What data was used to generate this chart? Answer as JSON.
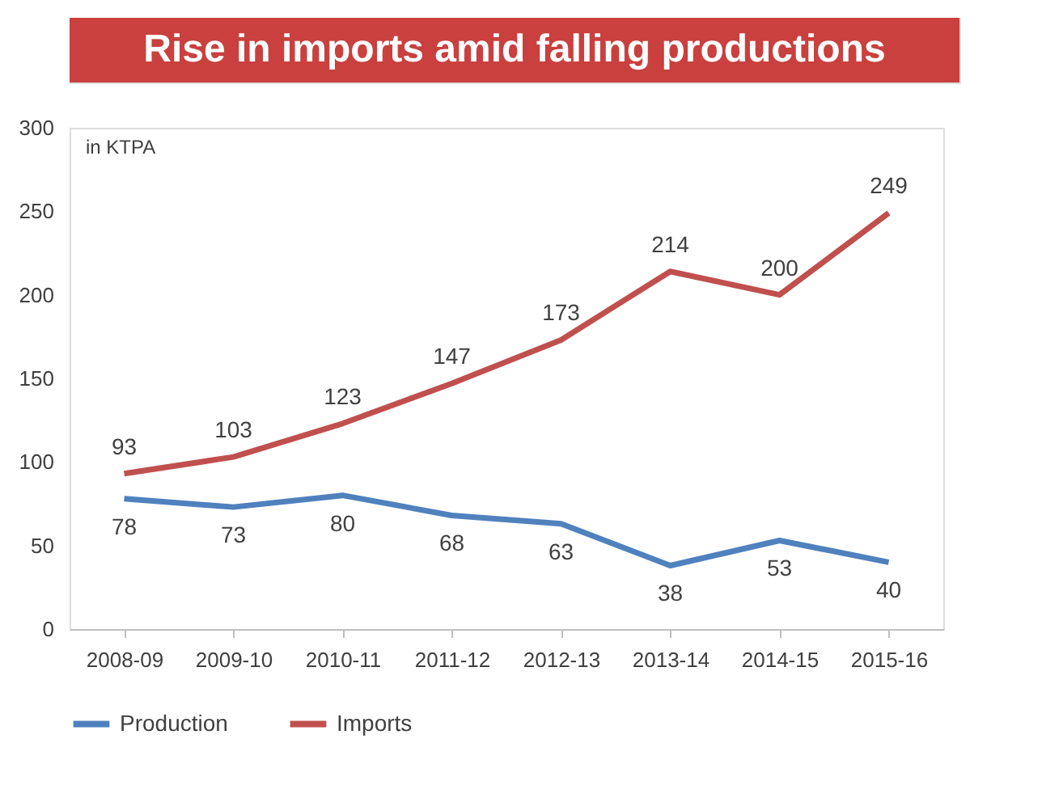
{
  "chart_data": {
    "type": "line",
    "title": "Rise in imports amid falling productions",
    "annotations": [
      "in KTPA"
    ],
    "categories": [
      "2008-09",
      "2009-10",
      "2010-11",
      "2011-12",
      "2012-13",
      "2013-14",
      "2014-15",
      "2015-16"
    ],
    "series": [
      {
        "name": "Production",
        "color": "#4f81bd",
        "values": [
          78,
          73,
          80,
          68,
          63,
          38,
          53,
          40
        ]
      },
      {
        "name": "Imports",
        "color": "#c0504d",
        "values": [
          93,
          103,
          123,
          147,
          173,
          214,
          200,
          249
        ]
      }
    ],
    "ylim": [
      0,
      300
    ],
    "yticks": [
      0,
      50,
      100,
      150,
      200,
      250,
      300
    ],
    "grid": false,
    "legend": "bottom",
    "data_labels": true,
    "line_style": "solid"
  }
}
